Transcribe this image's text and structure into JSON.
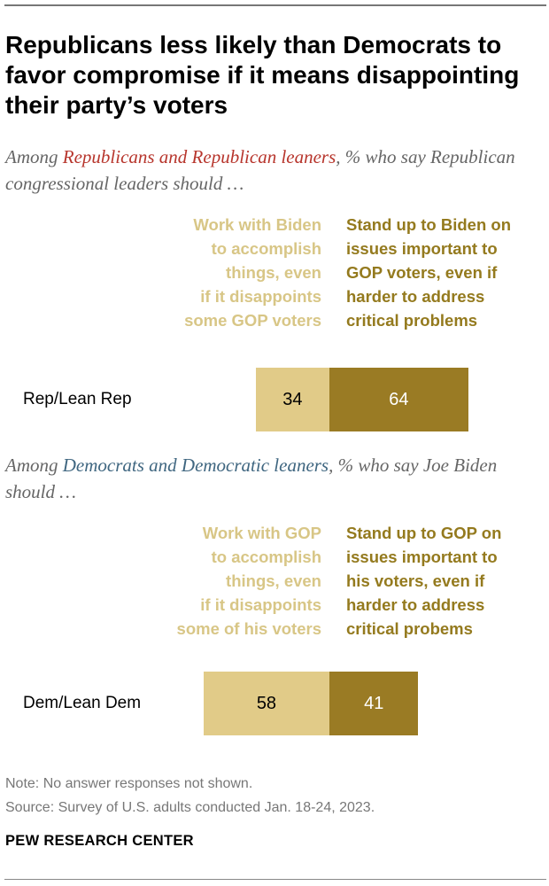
{
  "title": "Republicans less likely than Democrats to favor compromise if it means disappointing their party’s voters",
  "sections": [
    {
      "subtitle_pre": "Among ",
      "subtitle_highlight": "Republicans and Republican leaners",
      "subtitle_post": ", % who say Republican congressional leaders should …",
      "legend_left": [
        "Work with Biden",
        "to accomplish",
        "things, even",
        "if it disappoints",
        "some GOP voters"
      ],
      "legend_right": [
        "Stand up to Biden on",
        "issues important to",
        "GOP voters, even if",
        "harder to address",
        "critical problems"
      ],
      "row_label": "Rep/Lean Rep",
      "value_left": "34",
      "value_right": "64"
    },
    {
      "subtitle_pre": "Among ",
      "subtitle_highlight": "Democrats and Democratic leaners",
      "subtitle_post": ", % who say Joe Biden should …",
      "legend_left": [
        "Work with GOP",
        "to accomplish",
        "things, even",
        "if it disappoints",
        "some of his voters"
      ],
      "legend_right": [
        "Stand up to GOP on",
        "issues important to",
        "his voters, even if",
        "harder to address",
        "critical probems"
      ],
      "row_label": "Dem/Lean Dem",
      "value_left": "58",
      "value_right": "41"
    }
  ],
  "note": "Note: No answer responses not shown.",
  "source": "Source: Survey of U.S. adults conducted Jan. 18-24, 2023.",
  "brand": "PEW RESEARCH CENTER",
  "colors": {
    "compromise": "#e1cb88",
    "stand_up": "#9a7b24",
    "republican_highlight": "#b7352c",
    "democrat_highlight": "#3f6680"
  },
  "chart_data": {
    "type": "bar",
    "orientation": "horizontal",
    "stacked": true,
    "categories": [
      "Rep/Lean Rep",
      "Dem/Lean Dem"
    ],
    "series": [
      {
        "name": "Work with the other side to accomplish things, even if it disappoints some of their voters",
        "values": [
          34,
          58
        ]
      },
      {
        "name": "Stand up to the other side on issues important to their voters, even if harder to address critical problems",
        "values": [
          64,
          41
        ]
      }
    ],
    "xlim": [
      0,
      100
    ],
    "grid": false
  }
}
